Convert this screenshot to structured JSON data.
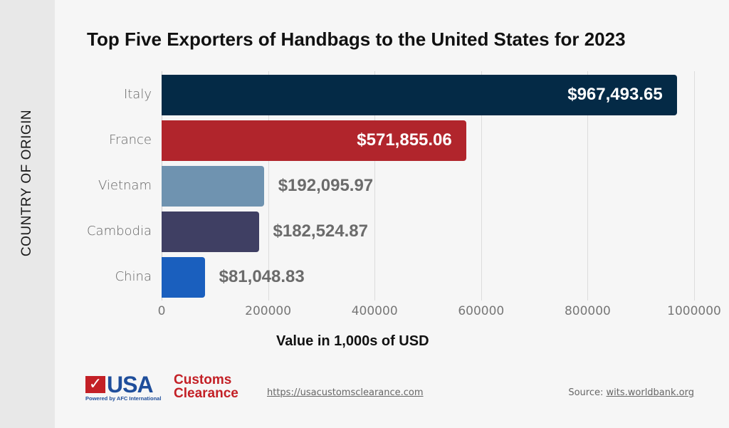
{
  "chart_data": {
    "type": "bar",
    "orientation": "horizontal",
    "title": "Top Five Exporters of Handbags to the United States for 2023",
    "xlabel": "Value in 1,000s of USD",
    "ylabel": "COUNTRY OF ORIGIN",
    "categories": [
      "Italy",
      "France",
      "Vietnam",
      "Cambodia",
      "China"
    ],
    "values": [
      967493.65,
      571855.06,
      192095.97,
      182524.87,
      81048.83
    ],
    "value_labels": [
      "$967,493.65",
      "$571,855.06",
      "$192,095.97",
      "$182,524.87",
      "$81,048.83"
    ],
    "colors": [
      "#042a46",
      "#b1252c",
      "#6f93b0",
      "#3f3f63",
      "#1a5fbe"
    ],
    "xlim": [
      0,
      1000000
    ],
    "x_ticks": [
      "0",
      "200000",
      "400000",
      "600000",
      "800000",
      "1000000"
    ],
    "grid": true,
    "legend": "none"
  },
  "footer": {
    "logo": {
      "check": "✓",
      "usa": "USA",
      "customs": "Customs",
      "clearance": "Clearance",
      "powered_by": "Powered by AFC International"
    },
    "url": "https://usacustomsclearance.com",
    "source_prefix": "Source: ",
    "source_link": "wits.worldbank.org"
  }
}
